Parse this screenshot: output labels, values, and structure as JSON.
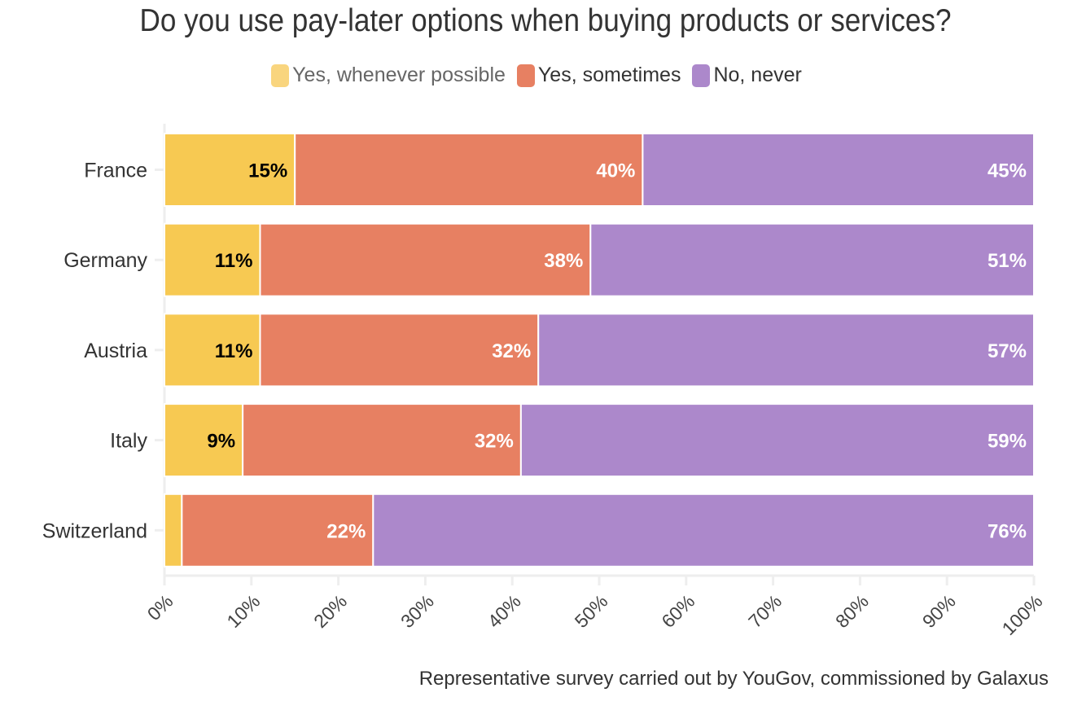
{
  "chart_data": {
    "type": "bar",
    "orientation": "horizontal",
    "stacked": true,
    "title": "Do you use pay-later options when buying products or services?",
    "caption": "Representative survey carried out by YouGov, commissioned by Galaxus",
    "categories": [
      "France",
      "Germany",
      "Austria",
      "Italy",
      "Switzerland"
    ],
    "series": [
      {
        "name": "Yes, whenever possible",
        "color": "#F7C952",
        "legend_color": "#F9D57E",
        "label_color": "#000000",
        "values": [
          15,
          11,
          11,
          9,
          2
        ],
        "labels": [
          "15%",
          "11%",
          "11%",
          "9%",
          ""
        ]
      },
      {
        "name": "Yes, sometimes",
        "color": "#E78062",
        "legend_color": "#E78062",
        "label_color": "#FFFFFF",
        "values": [
          40,
          38,
          32,
          32,
          22
        ],
        "labels": [
          "40%",
          "38%",
          "32%",
          "32%",
          "22%"
        ]
      },
      {
        "name": "No, never",
        "color": "#AC88CB",
        "legend_color": "#AC88CB",
        "label_color": "#FFFFFF",
        "values": [
          45,
          51,
          57,
          59,
          76
        ],
        "labels": [
          "45%",
          "51%",
          "57%",
          "59%",
          "76%"
        ]
      }
    ],
    "xlim": [
      0,
      100
    ],
    "xticks": [
      "0%",
      "10%",
      "20%",
      "30%",
      "40%",
      "50%",
      "60%",
      "70%",
      "80%",
      "90%",
      "100%"
    ],
    "legend_position": "top",
    "grid": false
  }
}
